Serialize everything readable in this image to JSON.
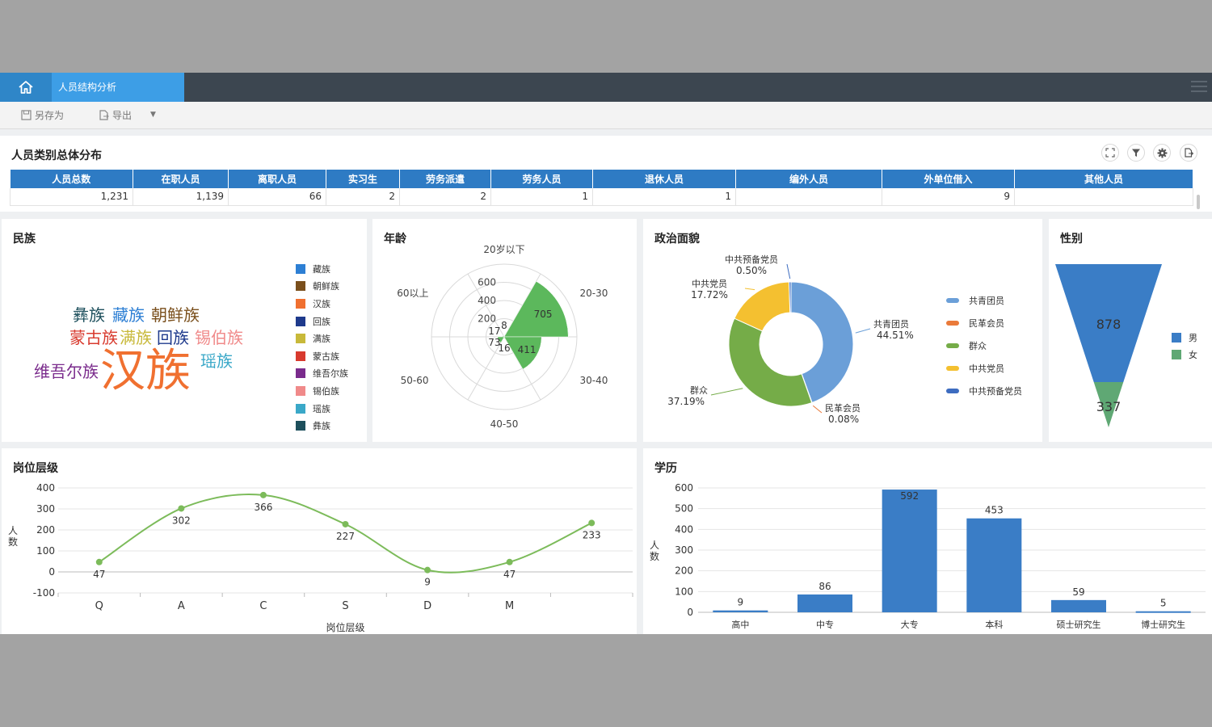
{
  "topbar": {
    "tab_label": "人员结构分析"
  },
  "toolbar": {
    "save_as": "另存为",
    "export": "导出"
  },
  "summary": {
    "title": "人员类别总体分布",
    "columns": [
      "人员总数",
      "在职人员",
      "离职人员",
      "实习生",
      "劳务派遣",
      "劳务人员",
      "退休人员",
      "编外人员",
      "外单位借入",
      "其他人员"
    ],
    "values": [
      "1,231",
      "1,139",
      "66",
      "2",
      "2",
      "1",
      "1",
      "",
      "9",
      ""
    ]
  },
  "ethnicity": {
    "title": "民族",
    "legend": [
      {
        "label": "藏族",
        "color": "#2d7fd4"
      },
      {
        "label": "朝鲜族",
        "color": "#7a4f1c"
      },
      {
        "label": "汉族",
        "color": "#f07030"
      },
      {
        "label": "回族",
        "color": "#1e3a8c"
      },
      {
        "label": "满族",
        "color": "#c8b93a"
      },
      {
        "label": "蒙古族",
        "color": "#d83a2e"
      },
      {
        "label": "维吾尔族",
        "color": "#7a2b8c"
      },
      {
        "label": "锡伯族",
        "color": "#f08a8a"
      },
      {
        "label": "瑶族",
        "color": "#3aa8c8"
      },
      {
        "label": "彝族",
        "color": "#1d4f5c"
      }
    ],
    "words": [
      "彝族",
      "藏族",
      "朝鲜族",
      "蒙古族",
      "满族",
      "回族",
      "锡伯族",
      "维吾尔族",
      "汉族",
      "瑶族"
    ]
  },
  "age": {
    "title": "年龄"
  },
  "politics": {
    "title": "政治面貌",
    "legend": [
      {
        "label": "共青团员",
        "color": "#6b9fd8"
      },
      {
        "label": "民革会员",
        "color": "#ea7a3a"
      },
      {
        "label": "群众",
        "color": "#75ac48"
      },
      {
        "label": "中共党员",
        "color": "#f4c030"
      },
      {
        "label": "中共预备党员",
        "color": "#3d6cc0"
      }
    ]
  },
  "gender": {
    "title": "性别",
    "legend": [
      {
        "label": "男",
        "color": "#3a7dc6"
      },
      {
        "label": "女",
        "color": "#5fa874"
      }
    ]
  },
  "post": {
    "title": "岗位层级"
  },
  "education": {
    "title": "学历"
  },
  "chart_data": [
    {
      "type": "polar-bar",
      "title": "年龄",
      "categories": [
        "20岁以下",
        "20-30",
        "30-40",
        "40-50",
        "50-60",
        "60以上"
      ],
      "values": [
        8,
        705,
        411,
        16,
        73,
        17
      ],
      "value_labels": [
        "8",
        "705",
        "411",
        "16",
        "73",
        "17"
      ],
      "radial_ticks": [
        200,
        400,
        600
      ],
      "color": "#5cb85c"
    },
    {
      "type": "pie",
      "title": "政治面貌",
      "donut": true,
      "slices": [
        {
          "name": "共青团员",
          "label": "共青团员",
          "pct": "44.51%",
          "value": 44.51,
          "color": "#6b9fd8"
        },
        {
          "name": "民革会员",
          "label": "民革会员",
          "pct": "0.08%",
          "value": 0.08,
          "color": "#ea7a3a"
        },
        {
          "name": "群众",
          "label": "群众",
          "pct": "37.19%",
          "value": 37.19,
          "color": "#75ac48"
        },
        {
          "name": "中共党员",
          "label": "中共党员",
          "pct": "17.72%",
          "value": 17.72,
          "color": "#f4c030"
        },
        {
          "name": "中共预备党员",
          "label": "中共预备党员",
          "pct": "0.50%",
          "value": 0.5,
          "color": "#3d6cc0"
        }
      ]
    },
    {
      "type": "funnel",
      "title": "性别",
      "series": [
        {
          "name": "男",
          "value": 878,
          "label": "878",
          "color": "#3a7dc6"
        },
        {
          "name": "女",
          "value": 337,
          "label": "337",
          "color": "#5fa874"
        }
      ]
    },
    {
      "type": "line",
      "title": "岗位层级",
      "categories": [
        "Q",
        "A",
        "C",
        "S",
        "D",
        "M",
        ""
      ],
      "values": [
        47,
        302,
        366,
        227,
        9,
        47,
        233
      ],
      "value_labels": [
        "47",
        "302",
        "366",
        "227",
        "9",
        "47",
        "233"
      ],
      "ylim": [
        -100,
        400
      ],
      "yticks": [
        "400",
        "300",
        "200",
        "100",
        "0",
        "-100"
      ],
      "ytick_values": [
        400,
        300,
        200,
        100,
        0,
        -100
      ],
      "xlabel": "岗位层级",
      "ylabel": "人数",
      "smooth": true,
      "color": "#7cbb5a"
    },
    {
      "type": "bar",
      "title": "学历",
      "categories": [
        "高中",
        "中专",
        "大专",
        "本科",
        "硕士研究生",
        "博士研究生"
      ],
      "values": [
        9,
        86,
        592,
        453,
        59,
        5
      ],
      "value_labels": [
        "9",
        "86",
        "592",
        "453",
        "59",
        "5"
      ],
      "ylim": [
        0,
        600
      ],
      "yticks": [
        "600",
        "500",
        "400",
        "300",
        "200",
        "100",
        "0"
      ],
      "ytick_values": [
        600,
        500,
        400,
        300,
        200,
        100,
        0
      ],
      "ylabel": "人数",
      "color": "#3a7dc6"
    }
  ]
}
